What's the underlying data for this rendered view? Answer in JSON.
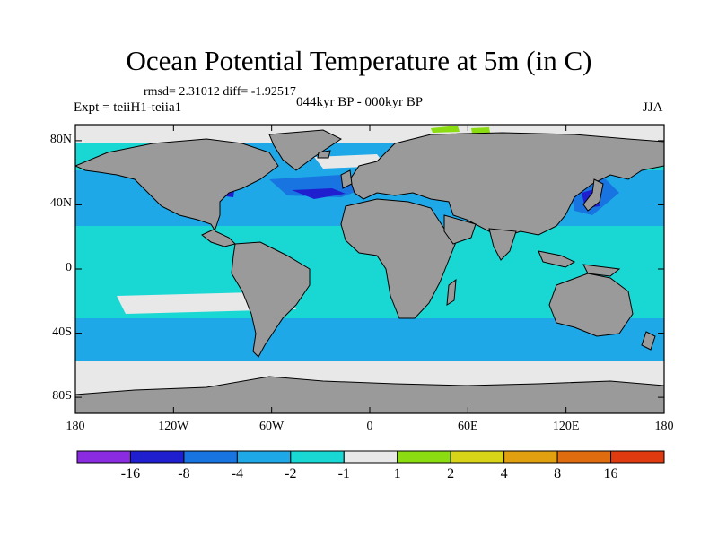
{
  "title": "Ocean Potential Temperature at 5m (in C)",
  "stats": "rmsd= 2.31012 diff= -1.92517",
  "experiment": "Expt = teiiH1-teiia1",
  "period": "044kyr BP - 000kyr BP",
  "season": "JJA",
  "lat_ticks": [
    {
      "label": "80N",
      "value": 80
    },
    {
      "label": "40N",
      "value": 40
    },
    {
      "label": "0",
      "value": 0
    },
    {
      "label": "40S",
      "value": -40
    },
    {
      "label": "80S",
      "value": -80
    }
  ],
  "lon_ticks": [
    {
      "label": "180",
      "value": -180
    },
    {
      "label": "120W",
      "value": -120
    },
    {
      "label": "60W",
      "value": -60
    },
    {
      "label": "0",
      "value": 0
    },
    {
      "label": "60E",
      "value": 60
    },
    {
      "label": "120E",
      "value": 120
    },
    {
      "label": "180",
      "value": 180
    }
  ],
  "colorbar": {
    "colors": [
      "#8a2be2",
      "#1f1fd0",
      "#1874e0",
      "#1ea8e8",
      "#19d8d4",
      "#e8e8e8",
      "#8cdc12",
      "#d8d418",
      "#e0a010",
      "#e06c10",
      "#e03a10"
    ],
    "labels": [
      "-16",
      "-8",
      "-4",
      "-2",
      "-1",
      "1",
      "2",
      "4",
      "8",
      "16"
    ]
  },
  "colors": {
    "land": "#9a9a9a",
    "coast": "#000000"
  }
}
